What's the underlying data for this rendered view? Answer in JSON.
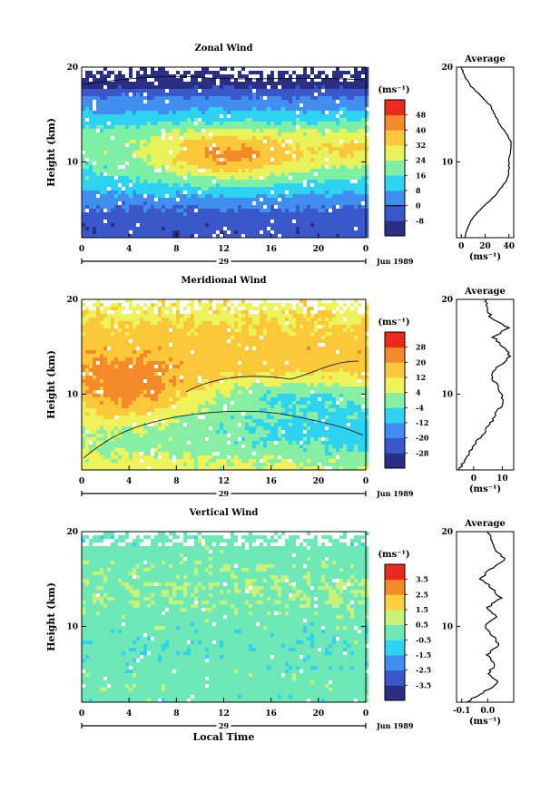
{
  "chart_data": [
    {
      "type": "heatmap",
      "title": "Zonal Wind",
      "ylabel": "Height (km)",
      "ylim": [
        2,
        20
      ],
      "yticks": [
        "20",
        "10"
      ],
      "xlim": [
        0,
        24
      ],
      "xticks": [
        "0",
        "4",
        "8",
        "12",
        "16",
        "20",
        "0"
      ],
      "date_day": "29",
      "date_label": "Jun 1989",
      "colorbar": {
        "unit": "(ms⁻¹)",
        "levels": [
          "48",
          "40",
          "32",
          "24",
          "16",
          "8",
          "0",
          "-8"
        ],
        "contour_level": "0"
      },
      "profile": {
        "title": "Average",
        "xlabel": "(ms⁻¹)",
        "xticks": [
          "0",
          "20",
          "40"
        ],
        "xlim": [
          -4,
          44
        ],
        "yticks": [
          "20",
          "10"
        ],
        "height_km": [
          2,
          3,
          4,
          5,
          6,
          7,
          8,
          9,
          10,
          11,
          12,
          13,
          14,
          15,
          16,
          17,
          18,
          19,
          20
        ],
        "values": [
          3,
          5,
          9,
          16,
          25,
          32,
          38,
          40,
          40,
          41,
          42,
          38,
          32,
          28,
          24,
          16,
          8,
          3,
          0
        ]
      }
    },
    {
      "type": "heatmap",
      "title": "Meridional Wind",
      "ylabel": "Height (km)",
      "ylim": [
        2,
        20
      ],
      "yticks": [
        "20",
        "10"
      ],
      "xlim": [
        0,
        24
      ],
      "xticks": [
        "0",
        "4",
        "8",
        "12",
        "16",
        "20",
        "0"
      ],
      "date_day": "29",
      "date_label": "Jun 1989",
      "colorbar": {
        "unit": "(ms⁻¹)",
        "levels": [
          "28",
          "20",
          "12",
          "4",
          "-4",
          "-12",
          "-20",
          "-28"
        ],
        "contour_level": "0"
      },
      "profile": {
        "title": "Average",
        "xlabel": "(ms⁻¹)",
        "xticks": [
          "0",
          "10"
        ],
        "xlim": [
          -6,
          14
        ],
        "yticks": [
          "20",
          "10"
        ],
        "height_km": [
          2,
          3,
          4,
          5,
          6,
          7,
          8,
          9,
          10,
          11,
          12,
          13,
          14,
          15,
          16,
          17,
          18,
          19,
          20
        ],
        "values": [
          -5,
          -3,
          -1,
          1,
          4,
          6,
          8,
          10,
          10,
          8,
          6,
          9,
          13,
          10,
          7,
          12,
          6,
          5,
          4
        ]
      }
    },
    {
      "type": "heatmap",
      "title": "Vertical Wind",
      "ylabel": "Height (km)",
      "ylim": [
        2,
        20
      ],
      "yticks": [
        "20",
        "10"
      ],
      "xlim": [
        0,
        24
      ],
      "xticks": [
        "0",
        "4",
        "8",
        "12",
        "16",
        "20",
        "0"
      ],
      "date_day": "29",
      "date_label": "Jun 1989",
      "xlabel": "Local Time",
      "colorbar": {
        "unit": "(ms⁻¹)",
        "levels": [
          "3.5",
          "2.5",
          "1.5",
          "0.5",
          "-0.5",
          "-1.5",
          "-2.5",
          "-3.5"
        ]
      },
      "profile": {
        "title": "Average",
        "xlabel": "(ms⁻¹)",
        "xticks": [
          "-0.1",
          "0.0"
        ],
        "xlim": [
          -0.12,
          0.1
        ],
        "yticks": [
          "20",
          "10"
        ],
        "height_km": [
          2,
          3,
          4,
          5,
          6,
          7,
          8,
          9,
          10,
          11,
          12,
          13,
          14,
          15,
          16,
          17,
          18,
          19,
          20
        ],
        "values": [
          -0.08,
          -0.02,
          0.04,
          0.0,
          0.03,
          0.0,
          0.04,
          0.02,
          -0.01,
          0.03,
          0.0,
          0.05,
          0.02,
          -0.03,
          0.01,
          0.07,
          0.03,
          0.02,
          0.0
        ]
      }
    }
  ],
  "palettes": {
    "zonal": [
      "#2b2f84",
      "#3a58c9",
      "#3f8ef0",
      "#2fd3f2",
      "#7df0a6",
      "#e8f25a",
      "#fbc83a",
      "#f58a2a",
      "#e92b1f"
    ],
    "meridional": [
      "#2b2f84",
      "#3a58c9",
      "#3f8ef0",
      "#2fd3f2",
      "#86efa3",
      "#eef35c",
      "#fbc83a",
      "#f58a2a",
      "#e92b1f"
    ],
    "vertical": [
      "#2b2f84",
      "#3a58c9",
      "#3f8ef0",
      "#2fd3f2",
      "#6fe8b8",
      "#c6f27a",
      "#fbd23c",
      "#f58a2a",
      "#e92b1f"
    ]
  }
}
